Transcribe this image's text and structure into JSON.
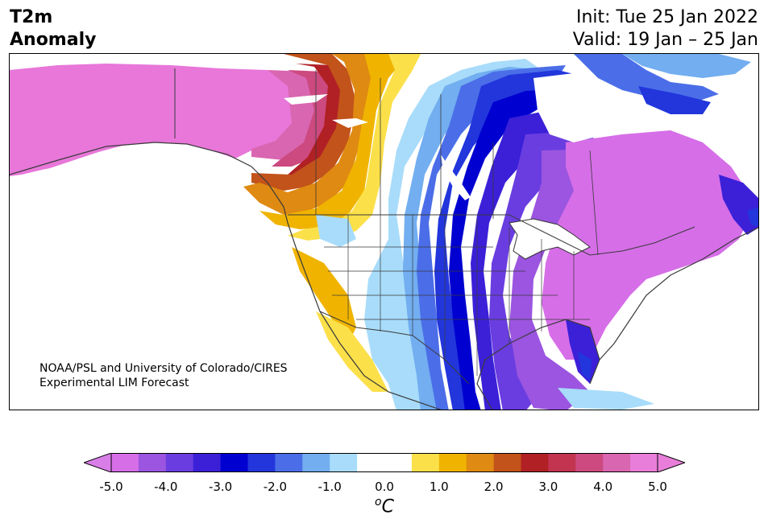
{
  "header": {
    "title_line1": "T2m",
    "title_line2": "Anomaly",
    "init": "Init: Tue 25 Jan 2022",
    "valid": "Valid: 19 Jan – 25 Jan"
  },
  "credit": {
    "line1": "NOAA/PSL and University of Colorado/CIRES",
    "line2": "Experimental LIM Forecast"
  },
  "colorbar": {
    "unit_base": "C",
    "unit_sup": "o",
    "tick_labels": [
      "-5.0",
      "-4.0",
      "-3.0",
      "-2.0",
      "-1.0",
      "0.0",
      "1.0",
      "2.0",
      "3.0",
      "4.0",
      "5.0"
    ],
    "min_color": "#d97ee8",
    "max_color": "#e87ed9",
    "colors": [
      "#d66ee8",
      "#9b55e0",
      "#6a3de0",
      "#3b20d8",
      "#0000d0",
      "#2236dc",
      "#4b6ee8",
      "#72aef0",
      "#a8dcfa",
      "#ffffff",
      "#ffffff",
      "#fbe04a",
      "#f0b400",
      "#df8a12",
      "#c2531a",
      "#b02024",
      "#c23450",
      "#cc4a80",
      "#d966b0",
      "#e87ed9"
    ]
  },
  "map": {
    "region": "North America",
    "variable": "2 m temperature anomaly"
  }
}
